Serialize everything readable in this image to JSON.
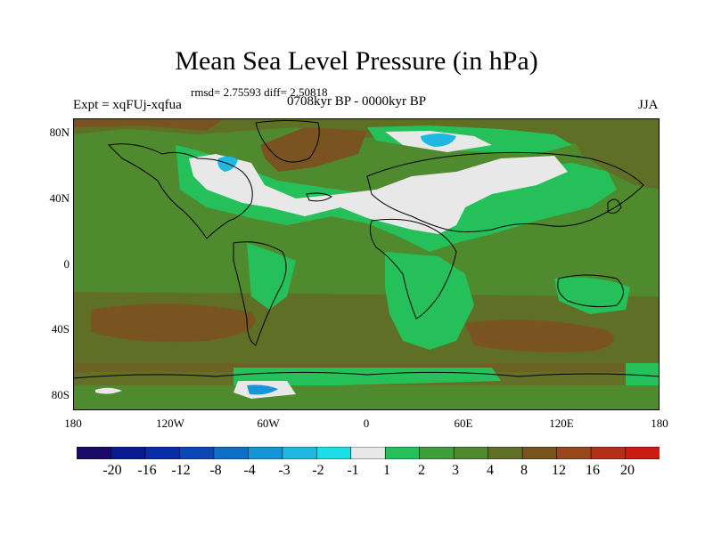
{
  "title": "Mean Sea Level Pressure (in hPa)",
  "stats": "rmsd= 2.75593 diff= 2.50818",
  "experiment": "Expt = xqFUj-xqfua",
  "period": "0708kyr BP - 0000kyr BP",
  "season": "JJA",
  "lat_labels": [
    "80N",
    "40N",
    "0",
    "40S",
    "80S"
  ],
  "lon_labels": [
    "180",
    "120W",
    "60W",
    "0",
    "60E",
    "120E",
    "180"
  ],
  "colorbar": {
    "labels": [
      "-20",
      "-16",
      "-12",
      "-8",
      "-4",
      "-3",
      "-2",
      "-1",
      "1",
      "2",
      "3",
      "4",
      "8",
      "12",
      "16",
      "20"
    ],
    "colors": [
      "#1a0a66",
      "#0c1a8f",
      "#0a2ea8",
      "#0d47b5",
      "#0f6fc7",
      "#1596d6",
      "#1fb8e0",
      "#1ddfe8",
      "#e8e8e8",
      "#25c05a",
      "#3f9e3c",
      "#4f8a2e",
      "#5f7026",
      "#7a5420",
      "#98461c",
      "#b0301a",
      "#cc1a14"
    ]
  },
  "palette": {
    "green_light": "#25c05a",
    "green_mid": "#3f9e3c",
    "olive": "#4f8a2e",
    "olive_dark": "#5f7026",
    "brown": "#7a5420",
    "white": "#e8e8e8",
    "cyan": "#1fb8e0",
    "blue": "#1596d6"
  }
}
